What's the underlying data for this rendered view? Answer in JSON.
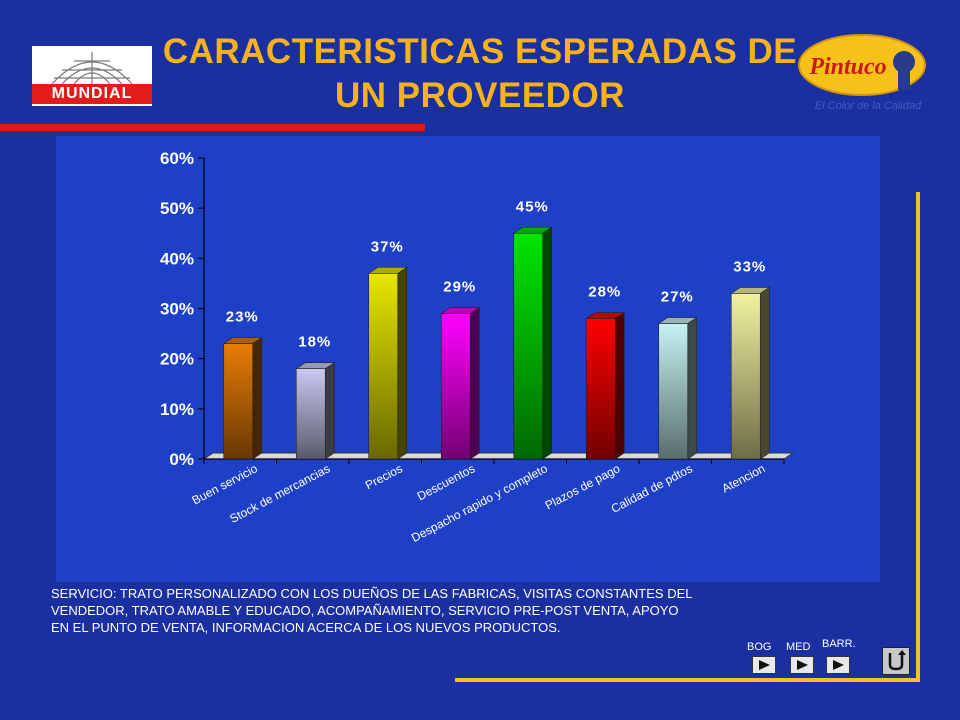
{
  "title": {
    "line1": "CARACTERISTICAS ESPERADAS DE",
    "line2": "UN PROVEEDOR"
  },
  "logo_left": {
    "text": "MUNDIAL"
  },
  "logo_right": {
    "text": "Pintuco",
    "tagline": "El Color de la Calidad"
  },
  "colors": {
    "background": "#1a2fa0",
    "title": "#f6b21b",
    "chart_panel": "#1d40c6",
    "rule_red": "#d91c1c",
    "frame_yellow": "#f4c21d"
  },
  "chart_data": {
    "type": "bar",
    "categories": [
      "Buen servicio",
      "Stock de mercancias",
      "Precios",
      "Descuentos",
      "Despacho rapido y completo",
      "Plazos de pago",
      "Calidad de pdtos",
      "Atencion"
    ],
    "values": [
      23,
      18,
      37,
      29,
      45,
      28,
      27,
      33
    ],
    "value_labels": [
      "23%",
      "18%",
      "37%",
      "29%",
      "45%",
      "28%",
      "27%",
      "33%"
    ],
    "bar_colors": [
      "#e87d06",
      "#c9c9f2",
      "#e7e700",
      "#ff00ff",
      "#00e600",
      "#ff0000",
      "#c5f2f2",
      "#f2f2a0"
    ],
    "ylim": [
      0,
      60
    ],
    "yticks": [
      0,
      10,
      20,
      30,
      40,
      50,
      60
    ],
    "ytick_labels": [
      "0%",
      "10%",
      "20%",
      "30%",
      "40%",
      "50%",
      "60%"
    ],
    "grid": false,
    "style": "3d-bars"
  },
  "notes": {
    "line1": "SERVICIO: TRATO PERSONALIZADO CON LOS DUEÑOS DE LAS FABRICAS, VISITAS CONSTANTES DEL",
    "line2": " VENDEDOR, TRATO AMABLE Y EDUCADO, ACOMPAÑAMIENTO, SERVICIO PRE-POST VENTA, APOYO",
    "line3": "EN EL PUNTO DE VENTA, INFORMACION ACERCA DE LOS NUEVOS PRODUCTOS."
  },
  "nav": {
    "bog": "BOG",
    "med": "MED",
    "barr": "BARR.",
    "home_icon": "return-icon"
  }
}
